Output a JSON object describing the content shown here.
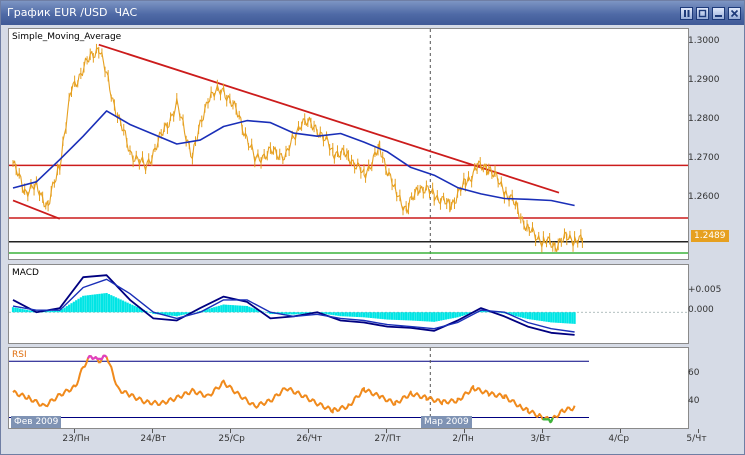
{
  "window": {
    "title": "График EUR /USD  ЧАС",
    "buttons": [
      "pause-icon",
      "restore-icon",
      "close-icon"
    ]
  },
  "colors": {
    "price": "#e6a020",
    "ma": "#1a2fb8",
    "trendline": "#cc1c1c",
    "support_green": "#3cb43c",
    "macd_hist": "#00e5e5",
    "macd_main": "#000080",
    "rsi": "#f08a1c",
    "rsi_levels": "#000080",
    "price_tag": "#e6a020"
  },
  "main_chart": {
    "indicator_label": "Simple_Moving_Average",
    "price_tag": "1.2489"
  },
  "macd_panel": {
    "label": "MACD"
  },
  "rsi_panel": {
    "label": "RSI"
  },
  "date_markers": {
    "left": "Фев 2009",
    "middle": "Мар 2009"
  },
  "chart_data": [
    {
      "type": "line",
      "title": "График EUR /USD  ЧАС",
      "xlabel": "",
      "ylabel": "",
      "x_ticks": [
        "23/Пн",
        "24/Вт",
        "25/Ср",
        "26/Чт",
        "27/Пт",
        "2/Пн",
        "3/Вт",
        "4/Ср",
        "5/Чт"
      ],
      "y_ticks": [
        "1.3000",
        "1.2900",
        "1.2800",
        "1.2700",
        "1.2600"
      ],
      "ylim": [
        1.2455,
        1.3025
      ],
      "grid": false,
      "series": [
        {
          "name": "Simple_Moving_Average",
          "x": [
            0,
            0.3,
            0.6,
            0.9,
            1.2,
            1.5,
            1.8,
            2.1,
            2.4,
            2.7,
            3.0,
            3.3,
            3.6,
            3.9,
            4.2,
            4.5,
            4.8,
            5.1,
            5.4,
            5.7,
            6.0,
            6.3,
            6.6,
            6.9,
            7.2
          ],
          "values": [
            1.2627,
            1.2643,
            1.27,
            1.276,
            1.2825,
            1.279,
            1.2765,
            1.274,
            1.275,
            1.2785,
            1.28,
            1.2795,
            1.2768,
            1.276,
            1.2767,
            1.2745,
            1.272,
            1.268,
            1.266,
            1.2628,
            1.2612,
            1.26,
            1.2598,
            1.2595,
            1.2582
          ]
        },
        {
          "name": "",
          "x": [
            0,
            0.15,
            0.3,
            0.45,
            0.6,
            0.75,
            0.95,
            1.1,
            1.3,
            1.5,
            1.7,
            1.9,
            2.1,
            2.3,
            2.5,
            2.7,
            2.9,
            3.1,
            3.3,
            3.5,
            3.7,
            3.9,
            4.1,
            4.3,
            4.5,
            4.7,
            4.9,
            5.05,
            5.2,
            5.4,
            5.6,
            5.8,
            5.95,
            6.1,
            6.3,
            6.45,
            6.6,
            6.8,
            6.95,
            7.1,
            7.2,
            7.3
          ],
          "values": [
            1.269,
            1.262,
            1.263,
            1.258,
            1.269,
            1.288,
            1.295,
            1.299,
            1.284,
            1.272,
            1.268,
            1.276,
            1.284,
            1.271,
            1.286,
            1.288,
            1.281,
            1.27,
            1.272,
            1.271,
            1.28,
            1.278,
            1.272,
            1.271,
            1.266,
            1.273,
            1.262,
            1.257,
            1.263,
            1.261,
            1.258,
            1.264,
            1.268,
            1.268,
            1.262,
            1.258,
            1.252,
            1.249,
            1.248,
            1.25,
            1.2495,
            1.2489
          ]
        }
      ],
      "lines": [
        {
          "kind": "trendline",
          "from": [
            1.1,
            1.2995
          ],
          "to": [
            7.0,
            1.2615
          ]
        },
        {
          "kind": "trendline",
          "from": [
            0,
            1.2595
          ],
          "to": [
            0.6,
            1.2548
          ]
        },
        {
          "kind": "horizontal",
          "y": 1.2685
        },
        {
          "kind": "horizontal",
          "y": 1.255
        },
        {
          "kind": "horizontal",
          "y": 1.2489
        },
        {
          "kind": "horizontal",
          "y": 1.246
        }
      ]
    },
    {
      "type": "line",
      "title": "MACD",
      "y_ticks": [
        "+0.005",
        "0.000"
      ],
      "ylim": [
        -0.0065,
        0.0105
      ],
      "series": [
        {
          "name": "MACD",
          "x": [
            0,
            0.3,
            0.6,
            0.9,
            1.2,
            1.5,
            1.8,
            2.1,
            2.4,
            2.7,
            3.0,
            3.3,
            3.6,
            3.9,
            4.2,
            4.5,
            4.8,
            5.1,
            5.4,
            5.7,
            6.0,
            6.3,
            6.6,
            6.9,
            7.2
          ],
          "values": [
            0.003,
            0.0,
            0.001,
            0.0085,
            0.009,
            0.003,
            -0.0015,
            -0.002,
            0.001,
            0.0038,
            0.0025,
            -0.0015,
            -0.001,
            0.0,
            -0.002,
            -0.0025,
            -0.0035,
            -0.0038,
            -0.0045,
            -0.002,
            0.001,
            -0.001,
            -0.0035,
            -0.005,
            -0.0055
          ]
        },
        {
          "name": "",
          "x": [
            0,
            0.3,
            0.6,
            0.9,
            1.2,
            1.5,
            1.8,
            2.1,
            2.4,
            2.7,
            3.0,
            3.3,
            3.6,
            3.9,
            4.2,
            4.5,
            4.8,
            5.1,
            5.4,
            5.7,
            6.0,
            6.3,
            6.6,
            6.9,
            7.2
          ],
          "values": [
            0.0015,
            0.0005,
            0.0005,
            0.006,
            0.008,
            0.0045,
            0.0,
            -0.0015,
            0.0,
            0.003,
            0.003,
            0.0,
            -0.001,
            -0.0005,
            -0.0015,
            -0.002,
            -0.003,
            -0.0035,
            -0.004,
            -0.0025,
            0.0005,
            0.0,
            -0.0025,
            -0.004,
            -0.0048
          ]
        }
      ]
    },
    {
      "type": "line",
      "title": "RSI",
      "y_ticks": [
        "60",
        "40"
      ],
      "ylim": [
        24,
        78
      ],
      "levels": [
        70,
        30
      ],
      "series": [
        {
          "name": "RSI",
          "x": [
            0,
            0.2,
            0.4,
            0.6,
            0.8,
            0.9,
            1.0,
            1.1,
            1.2,
            1.35,
            1.5,
            1.7,
            1.9,
            2.1,
            2.3,
            2.5,
            2.7,
            2.9,
            3.1,
            3.3,
            3.5,
            3.7,
            3.9,
            4.1,
            4.3,
            4.5,
            4.7,
            4.9,
            5.1,
            5.3,
            5.5,
            5.7,
            5.9,
            6.1,
            6.3,
            6.5,
            6.6,
            6.75,
            6.9,
            7.05,
            7.2
          ],
          "values": [
            48,
            44,
            38,
            46,
            52,
            66,
            74,
            70,
            74,
            50,
            46,
            41,
            40,
            44,
            49,
            45,
            55,
            46,
            38,
            42,
            51,
            46,
            40,
            35,
            38,
            50,
            45,
            40,
            47,
            44,
            41,
            42,
            51,
            47,
            45,
            38,
            35,
            31,
            28,
            35,
            37
          ]
        }
      ]
    }
  ]
}
